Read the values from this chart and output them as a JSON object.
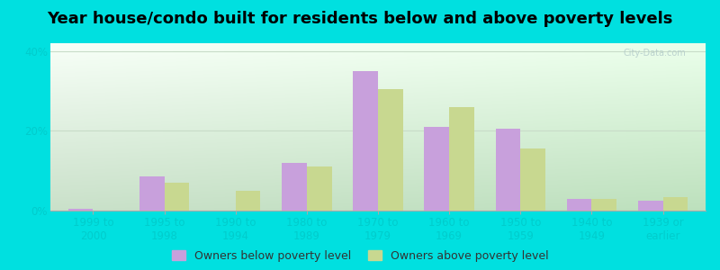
{
  "title": "Year house/condo built for residents below and above poverty levels",
  "categories": [
    "1999 to\n2000",
    "1995 to\n1998",
    "1990 to\n1994",
    "1980 to\n1989",
    "1970 to\n1979",
    "1960 to\n1969",
    "1950 to\n1959",
    "1940 to\n1949",
    "1939 or\nearlier"
  ],
  "below_poverty": [
    0.5,
    8.5,
    0.0,
    12.0,
    35.0,
    21.0,
    20.5,
    3.0,
    2.5
  ],
  "above_poverty": [
    0.0,
    7.0,
    5.0,
    11.0,
    30.5,
    26.0,
    15.5,
    3.0,
    3.5
  ],
  "below_color": "#c8a0dc",
  "above_color": "#c8d890",
  "ylim": [
    0,
    42
  ],
  "yticks": [
    0,
    20,
    40
  ],
  "ytick_labels": [
    "0%",
    "20%",
    "40%"
  ],
  "background_outer": "#00e0e0",
  "bar_width": 0.35,
  "legend_below_label": "Owners below poverty level",
  "legend_above_label": "Owners above poverty level",
  "title_fontsize": 13,
  "tick_fontsize": 8.5,
  "legend_fontsize": 9,
  "tick_color": "#00cccc",
  "grid_color": "#c8dcc8",
  "spine_color": "#aaaaaa"
}
